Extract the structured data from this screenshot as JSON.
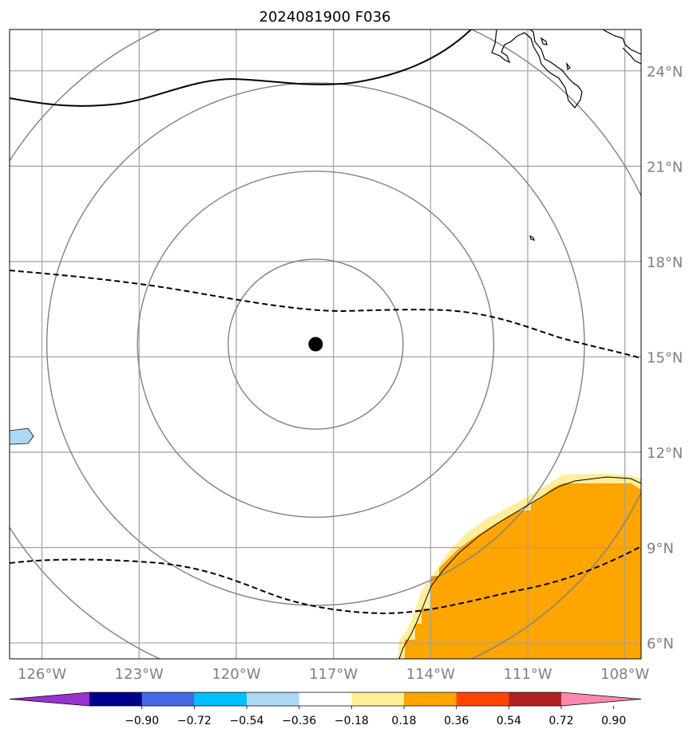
{
  "title": "2024081900 F036",
  "map": {
    "lon_range": [
      -127,
      -107.5
    ],
    "lat_range": [
      5.5,
      25.3
    ],
    "lon_ticks": [
      {
        "value": -126,
        "label": "126°W"
      },
      {
        "value": -123,
        "label": "123°W"
      },
      {
        "value": -120,
        "label": "120°W"
      },
      {
        "value": -117,
        "label": "117°W"
      },
      {
        "value": -114,
        "label": "114°W"
      },
      {
        "value": -111,
        "label": "111°W"
      },
      {
        "value": -108,
        "label": "108°W"
      }
    ],
    "lat_ticks": [
      {
        "value": 24,
        "label": "24°N"
      },
      {
        "value": 21,
        "label": "21°N"
      },
      {
        "value": 18,
        "label": "18°N"
      },
      {
        "value": 15,
        "label": "15°N"
      },
      {
        "value": 12,
        "label": "12°N"
      },
      {
        "value": 9,
        "label": "9°N"
      },
      {
        "value": 6,
        "label": "6°N"
      }
    ],
    "gridline_color": "#a0a0a0",
    "center_marker": {
      "lon": -117.55,
      "lat": 15.4,
      "color": "#000000"
    },
    "range_rings_deg": [
      2.7,
      5.5,
      8.3,
      11.1
    ],
    "ring_color": "#808080"
  },
  "colorbar": {
    "levels": [
      "−0.90",
      "−0.72",
      "−0.54",
      "−0.36",
      "−0.18",
      "0.18",
      "0.36",
      "0.54",
      "0.72",
      "0.90"
    ],
    "colors": [
      "#9932CC",
      "#00008B",
      "#4169E1",
      "#00BFFF",
      "#ADD8F5",
      "#FFFFFF",
      "#FFEE99",
      "#FFA500",
      "#FF4500",
      "#B22222",
      "#FF88B0"
    ]
  }
}
